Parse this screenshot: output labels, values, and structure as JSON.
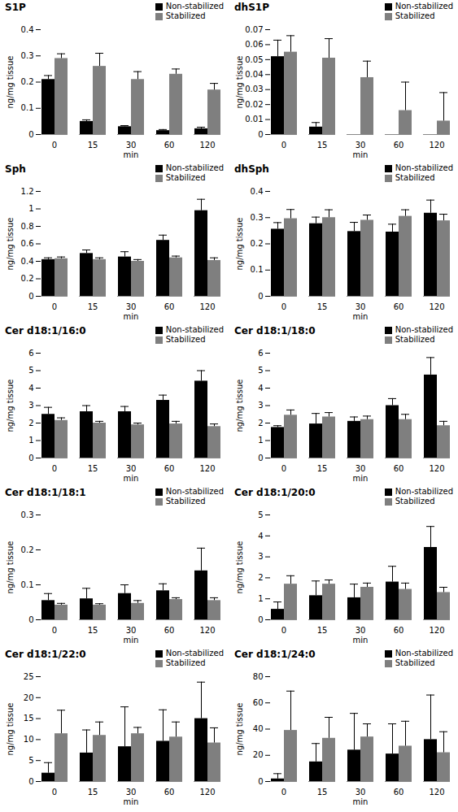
{
  "chart_data": [
    {
      "type": "bar",
      "title": "S1P",
      "xlabel": "min",
      "ylabel": "ng/mg tissue",
      "categories": [
        0,
        15,
        30,
        60,
        120
      ],
      "ylim": [
        0,
        0.4
      ],
      "yticks": [
        0,
        0.1,
        0.2,
        0.3,
        0.4
      ],
      "legend": "top-right",
      "series": [
        {
          "name": "Non-stabilized",
          "color": "#000000",
          "values": [
            0.21,
            0.05,
            0.03,
            0.015,
            0.022
          ],
          "errors": [
            0.015,
            0.006,
            0.004,
            0.004,
            0.006
          ]
        },
        {
          "name": "Stabilized",
          "color": "#7f7f7f",
          "values": [
            0.29,
            0.26,
            0.21,
            0.23,
            0.17
          ],
          "errors": [
            0.018,
            0.05,
            0.03,
            0.02,
            0.025
          ]
        }
      ]
    },
    {
      "type": "bar",
      "title": "dhS1P",
      "xlabel": "min",
      "ylabel": "ng/mg tissue",
      "categories": [
        0,
        15,
        30,
        60,
        120
      ],
      "ylim": [
        0,
        0.07
      ],
      "yticks": [
        0,
        0.01,
        0.02,
        0.03,
        0.04,
        0.05,
        0.06,
        0.07
      ],
      "legend": "top-right",
      "series": [
        {
          "name": "Non-stabilized",
          "color": "#000000",
          "values": [
            0.052,
            0.005,
            0,
            0,
            0
          ],
          "errors": [
            0.011,
            0.003,
            0,
            0,
            0
          ]
        },
        {
          "name": "Stabilized",
          "color": "#7f7f7f",
          "values": [
            0.055,
            0.051,
            0.038,
            0.016,
            0.009
          ],
          "errors": [
            0.011,
            0.013,
            0.011,
            0.019,
            0.019
          ]
        }
      ]
    },
    {
      "type": "bar",
      "title": "Sph",
      "xlabel": "min",
      "ylabel": "ng/mg tissue",
      "categories": [
        0,
        15,
        30,
        60,
        120
      ],
      "ylim": [
        0,
        1.2
      ],
      "yticks": [
        0,
        0.2,
        0.4,
        0.6,
        0.8,
        1,
        1.2
      ],
      "legend": "top-right",
      "series": [
        {
          "name": "Non-stabilized",
          "color": "#000000",
          "values": [
            0.42,
            0.49,
            0.45,
            0.64,
            0.98
          ],
          "errors": [
            0.02,
            0.04,
            0.06,
            0.06,
            0.13
          ]
        },
        {
          "name": "Stabilized",
          "color": "#7f7f7f",
          "values": [
            0.43,
            0.42,
            0.4,
            0.44,
            0.41
          ],
          "errors": [
            0.02,
            0.02,
            0.02,
            0.02,
            0.03
          ]
        }
      ]
    },
    {
      "type": "bar",
      "title": "dhSph",
      "xlabel": "min",
      "ylabel": "ng/mg tissue",
      "categories": [
        0,
        15,
        30,
        60,
        120
      ],
      "ylim": [
        0,
        0.4
      ],
      "yticks": [
        0,
        0.1,
        0.2,
        0.3,
        0.4
      ],
      "legend": "top-right",
      "series": [
        {
          "name": "Non-stabilized",
          "color": "#000000",
          "values": [
            0.256,
            0.277,
            0.247,
            0.245,
            0.317
          ],
          "errors": [
            0.025,
            0.025,
            0.035,
            0.03,
            0.05
          ]
        },
        {
          "name": "Stabilized",
          "color": "#7f7f7f",
          "values": [
            0.296,
            0.3,
            0.29,
            0.305,
            0.288
          ],
          "errors": [
            0.035,
            0.03,
            0.02,
            0.025,
            0.025
          ]
        }
      ]
    },
    {
      "type": "bar",
      "title": "Cer d18:1/16:0",
      "xlabel": "min",
      "ylabel": "ng/mg tissue",
      "categories": [
        0,
        15,
        30,
        60,
        120
      ],
      "ylim": [
        0,
        6
      ],
      "yticks": [
        0,
        1,
        2,
        3,
        4,
        5,
        6
      ],
      "legend": "top-right",
      "series": [
        {
          "name": "Non-stabilized",
          "color": "#000000",
          "values": [
            2.5,
            2.65,
            2.65,
            3.3,
            4.4
          ],
          "errors": [
            0.4,
            0.35,
            0.3,
            0.3,
            0.6
          ]
        },
        {
          "name": "Stabilized",
          "color": "#7f7f7f",
          "values": [
            2.15,
            2.0,
            1.9,
            1.95,
            1.8
          ],
          "errors": [
            0.15,
            0.1,
            0.1,
            0.15,
            0.15
          ]
        }
      ]
    },
    {
      "type": "bar",
      "title": "Cer d18:1/18:0",
      "xlabel": "min",
      "ylabel": "ng/mg tissue",
      "categories": [
        0,
        15,
        30,
        60,
        120
      ],
      "ylim": [
        0,
        6
      ],
      "yticks": [
        0,
        1,
        2,
        3,
        4,
        5,
        6
      ],
      "legend": "top-right",
      "series": [
        {
          "name": "Non-stabilized",
          "color": "#000000",
          "values": [
            1.75,
            1.95,
            2.1,
            3.0,
            4.75
          ],
          "errors": [
            0.1,
            0.6,
            0.25,
            0.4,
            1.0
          ]
        },
        {
          "name": "Stabilized",
          "color": "#7f7f7f",
          "values": [
            2.45,
            2.35,
            2.2,
            2.2,
            1.85
          ],
          "errors": [
            0.3,
            0.25,
            0.2,
            0.3,
            0.25
          ]
        }
      ]
    },
    {
      "type": "bar",
      "title": "Cer d18:1/18:1",
      "xlabel": "min",
      "ylabel": "ng/mg tissue",
      "categories": [
        0,
        15,
        30,
        60,
        120
      ],
      "ylim": [
        0,
        0.3
      ],
      "yticks": [
        0,
        0.1,
        0.2,
        0.3
      ],
      "legend": "top-right",
      "series": [
        {
          "name": "Non-stabilized",
          "color": "#000000",
          "values": [
            0.055,
            0.06,
            0.075,
            0.083,
            0.14
          ],
          "errors": [
            0.02,
            0.03,
            0.025,
            0.02,
            0.065
          ]
        },
        {
          "name": "Stabilized",
          "color": "#7f7f7f",
          "values": [
            0.042,
            0.042,
            0.047,
            0.058,
            0.055
          ],
          "errors": [
            0.005,
            0.004,
            0.008,
            0.005,
            0.008
          ]
        }
      ]
    },
    {
      "type": "bar",
      "title": "Cer d18:1/20:0",
      "xlabel": "min",
      "ylabel": "ng/mg tissue",
      "categories": [
        0,
        15,
        30,
        60,
        120
      ],
      "ylim": [
        0,
        5
      ],
      "yticks": [
        0,
        1,
        2,
        3,
        4,
        5
      ],
      "legend": "top-right",
      "series": [
        {
          "name": "Non-stabilized",
          "color": "#000000",
          "values": [
            0.5,
            1.15,
            1.05,
            1.8,
            3.45
          ],
          "errors": [
            0.35,
            0.7,
            0.65,
            0.75,
            1.0
          ]
        },
        {
          "name": "Stabilized",
          "color": "#7f7f7f",
          "values": [
            1.7,
            1.7,
            1.55,
            1.45,
            1.3
          ],
          "errors": [
            0.4,
            0.2,
            0.2,
            0.3,
            0.25
          ]
        }
      ]
    },
    {
      "type": "bar",
      "title": "Cer d18:1/22:0",
      "xlabel": "min",
      "ylabel": "ng/mg tissue",
      "categories": [
        0,
        15,
        30,
        60,
        120
      ],
      "ylim": [
        0,
        25
      ],
      "yticks": [
        0,
        5,
        10,
        15,
        20,
        25
      ],
      "legend": "top-right",
      "series": [
        {
          "name": "Non-stabilized",
          "color": "#000000",
          "values": [
            2,
            6.8,
            8.3,
            9.6,
            15
          ],
          "errors": [
            2.5,
            5.5,
            9.5,
            7.5,
            8.7
          ]
        },
        {
          "name": "Stabilized",
          "color": "#7f7f7f",
          "values": [
            11.4,
            11.0,
            11.4,
            10.6,
            9.2
          ],
          "errors": [
            5.6,
            3.2,
            1.5,
            3.6,
            3.6
          ]
        }
      ]
    },
    {
      "type": "bar",
      "title": "Cer d18:1/24:0",
      "xlabel": "min",
      "ylabel": "ng/mg tissue",
      "categories": [
        0,
        15,
        30,
        60,
        120
      ],
      "ylim": [
        0,
        80
      ],
      "yticks": [
        0,
        20,
        40,
        60,
        80
      ],
      "legend": "top-right",
      "series": [
        {
          "name": "Non-stabilized",
          "color": "#000000",
          "values": [
            2,
            15,
            24,
            21,
            32
          ],
          "errors": [
            4,
            14,
            28,
            23,
            34
          ]
        },
        {
          "name": "Stabilized",
          "color": "#7f7f7f",
          "values": [
            39,
            33,
            34,
            27,
            22
          ],
          "errors": [
            30,
            16,
            10,
            19,
            16
          ]
        }
      ]
    }
  ]
}
